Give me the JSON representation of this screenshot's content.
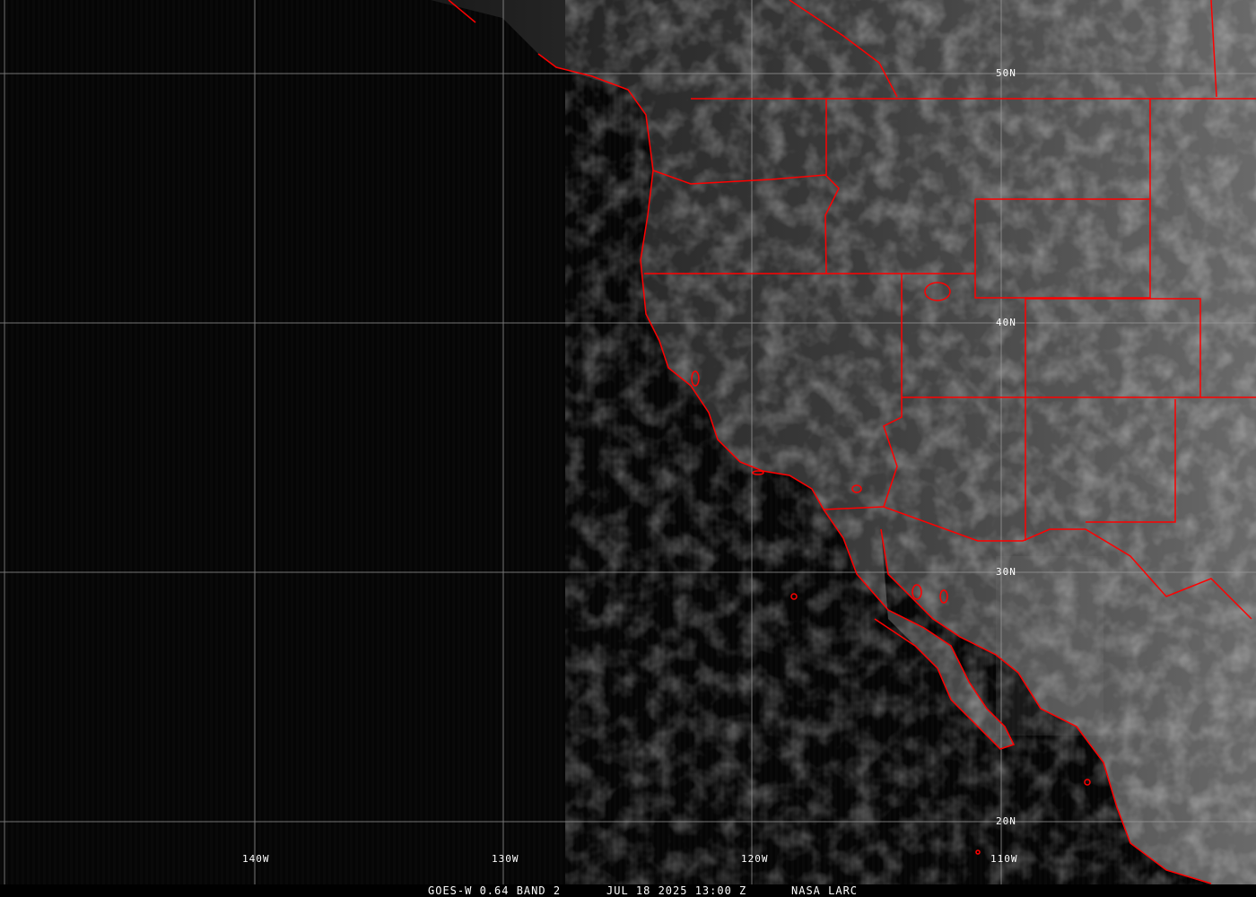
{
  "image": {
    "satellite": "GOES-W",
    "band_label": "GOES-W 0.64 BAND 2",
    "timestamp": "JUL 18 2025 13:00 Z",
    "credit": "NASA LARC"
  },
  "grid": {
    "latitude_labels": [
      "50N",
      "40N",
      "30N",
      "20N"
    ],
    "longitude_labels": [
      "140W",
      "130W",
      "120W",
      "110W"
    ]
  },
  "colors": {
    "boundaries": "#ff0000",
    "grid": "#a0a0a0",
    "ocean": "#050505"
  }
}
